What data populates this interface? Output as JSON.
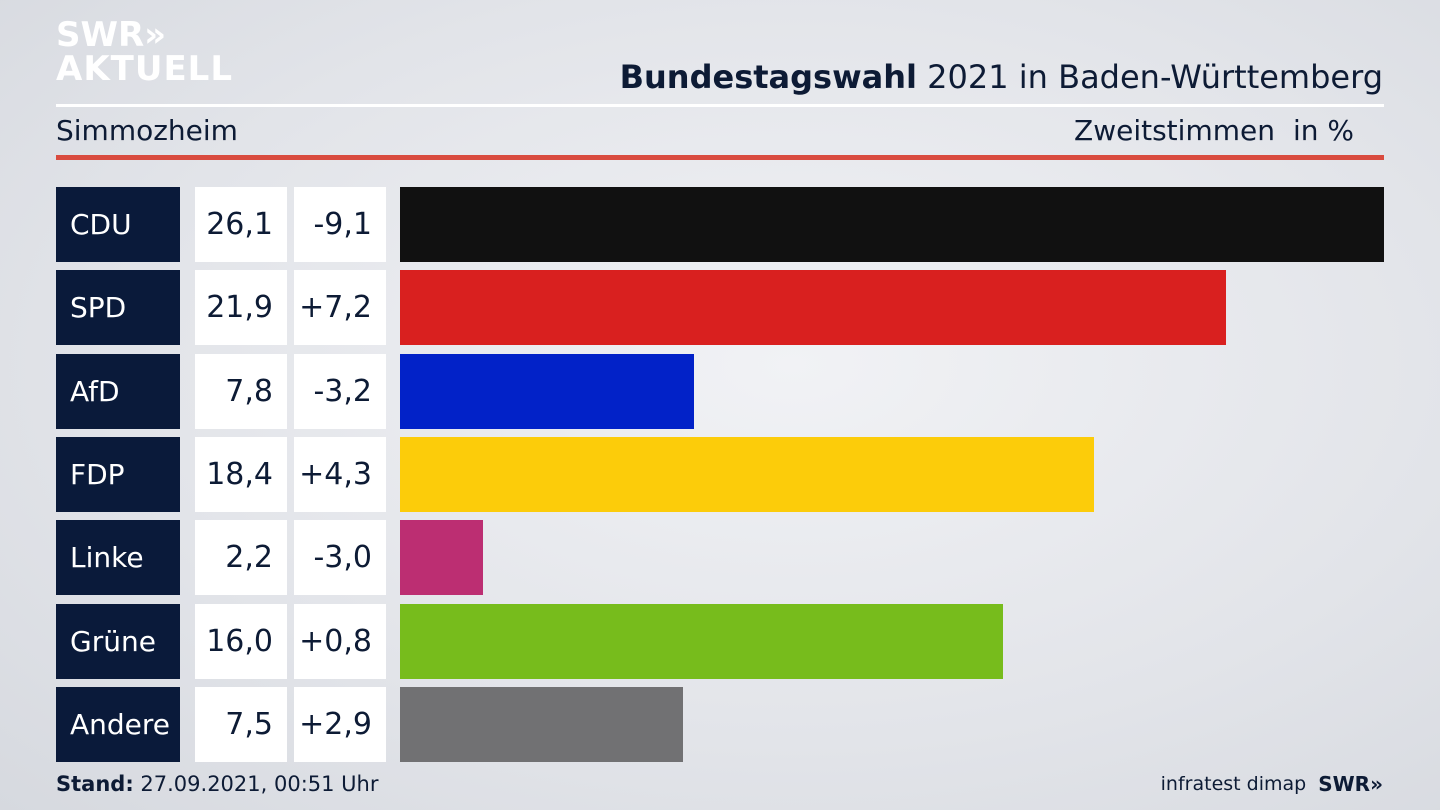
{
  "brand": {
    "line1": "SWR»",
    "line2": "AKTUELL"
  },
  "header": {
    "title_bold": "Bundestagswahl",
    "title_rest": " 2021 in Baden-Württemberg",
    "location": "Simmozheim",
    "metric": "Zweitstimmen",
    "unit": "in %"
  },
  "chart_data": {
    "type": "bar",
    "categories": [
      "CDU",
      "SPD",
      "AfD",
      "FDP",
      "Linke",
      "Grüne",
      "Andere"
    ],
    "values": [
      26.1,
      21.9,
      7.8,
      18.4,
      2.2,
      16.0,
      7.5
    ],
    "value_labels": [
      "26,1",
      "21,9",
      "7,8",
      "18,4",
      "2,2",
      "16,0",
      "7,5"
    ],
    "diff_labels": [
      "-9,1",
      "+7,2",
      "-3,2",
      "+4,3",
      "-3,0",
      "+0,8",
      "+2,9"
    ],
    "diffs": [
      -9.1,
      7.2,
      -3.2,
      4.3,
      -3.0,
      0.8,
      2.9
    ],
    "colors": [
      "#111111",
      "#d9201f",
      "#0222c8",
      "#fccc0a",
      "#bc2e72",
      "#77bc1c",
      "#717173"
    ],
    "orientation": "horizontal",
    "xlim": [
      0,
      26.1
    ]
  },
  "footer": {
    "stand_label": "Stand:",
    "stand_value": " 27.09.2021, 00:51 Uhr",
    "source": "infratest dimap",
    "swr": "SWR»"
  }
}
